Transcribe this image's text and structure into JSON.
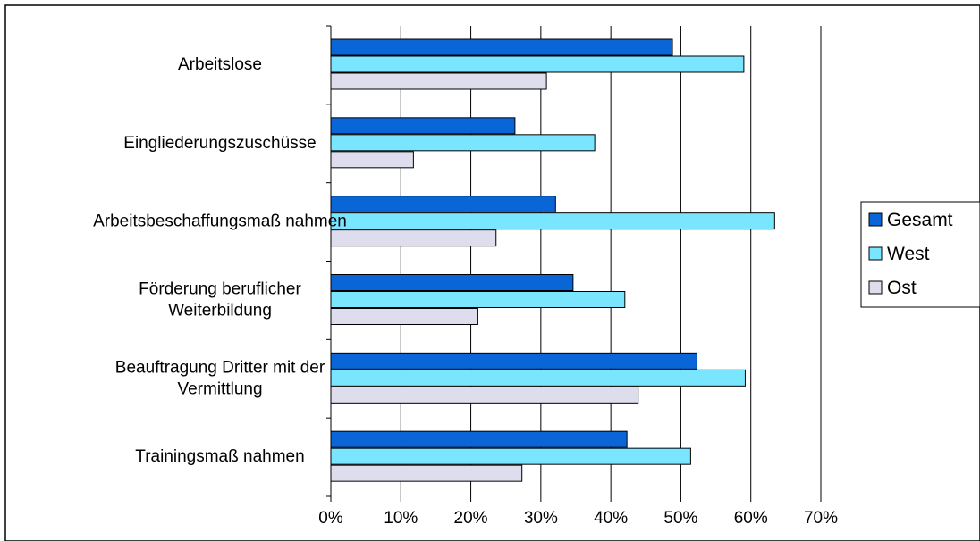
{
  "chart_data": {
    "type": "bar",
    "orientation": "horizontal",
    "categories": [
      [
        "Arbeitslose"
      ],
      [
        "Eingliederungszuschüsse"
      ],
      [
        "Arbeitsbeschaffungsmaß nahmen"
      ],
      [
        "Förderung beruflicher",
        "Weiterbildung"
      ],
      [
        "Beauftragung Dritter mit der",
        "Vermittlung"
      ],
      [
        "Trainingsmaß nahmen"
      ]
    ],
    "series": [
      {
        "name": "Gesamt",
        "color": "#0a66d6",
        "values": [
          48.8,
          26.3,
          32.1,
          34.6,
          52.3,
          42.3
        ]
      },
      {
        "name": "West",
        "color": "#79e5ff",
        "values": [
          59.0,
          37.7,
          63.4,
          42.0,
          59.2,
          51.4
        ]
      },
      {
        "name": "Ost",
        "color": "#ddddee",
        "values": [
          30.8,
          11.8,
          23.6,
          21.0,
          43.9,
          27.3
        ]
      }
    ],
    "x_ticks": [
      "0%",
      "10%",
      "20%",
      "30%",
      "40%",
      "50%",
      "60%",
      "70%"
    ],
    "xlim": [
      0,
      70
    ],
    "grid": true,
    "legend_position": "right"
  }
}
